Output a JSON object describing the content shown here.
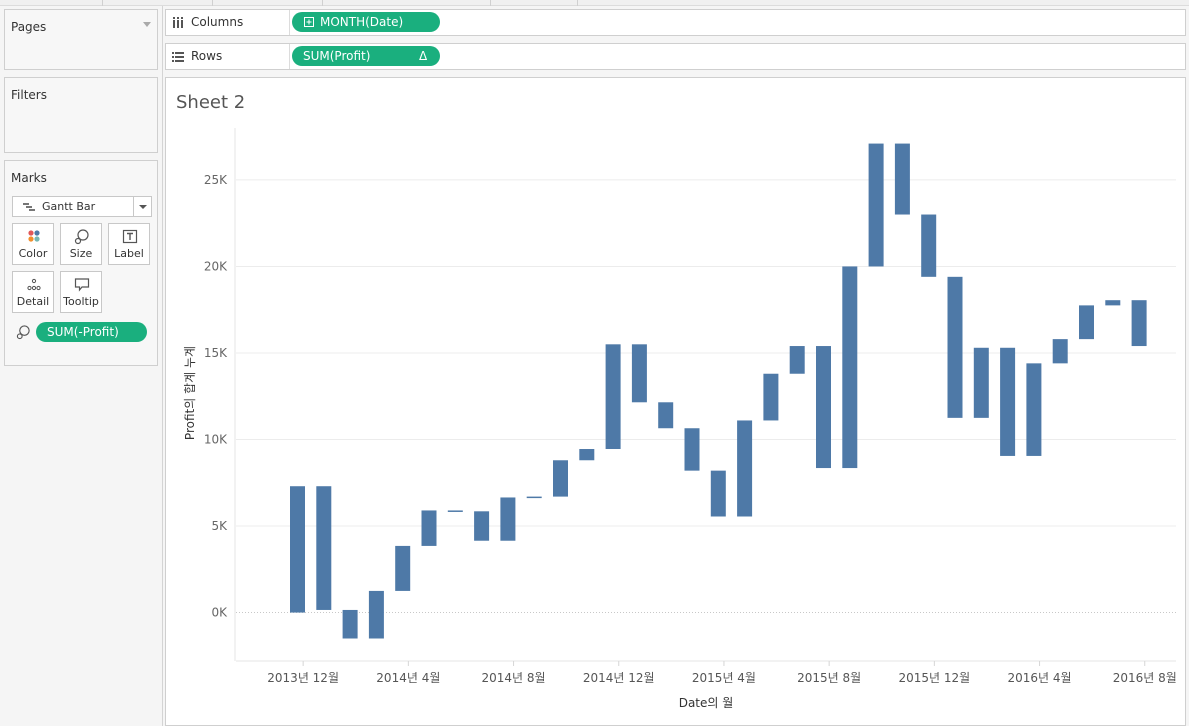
{
  "shelves": {
    "columns_label": "Columns",
    "rows_label": "Rows",
    "columns_pill": "MONTH(Date)",
    "rows_pill": "SUM(Profit)",
    "rows_pill_badge": "Δ"
  },
  "cards": {
    "pages_title": "Pages",
    "filters_title": "Filters",
    "marks_title": "Marks"
  },
  "marks": {
    "mark_type": "Gantt Bar",
    "buttons": {
      "color": "Color",
      "size": "Size",
      "label": "Label",
      "detail": "Detail",
      "tooltip": "Tooltip"
    },
    "size_pill": "SUM(-Profit)"
  },
  "sheet": {
    "title": "Sheet 2"
  },
  "colors": {
    "bar": "#4e79a7",
    "pill": "#1aaf7e",
    "grid": "#ececec"
  },
  "chart_data": {
    "type": "gantt-waterfall",
    "xlabel": "Date의 월",
    "ylabel": "Profit의 합계 누계",
    "ylim": [
      -2800,
      28000
    ],
    "yticks": [
      0,
      5000,
      10000,
      15000,
      20000,
      25000
    ],
    "ytick_labels": [
      "0K",
      "5K",
      "10K",
      "15K",
      "20K",
      "25K"
    ],
    "xtick_labels": [
      "2013년 12월",
      "2014년 4월",
      "2014년 8월",
      "2014년 12월",
      "2015년 4월",
      "2015년 8월",
      "2015년 12월",
      "2016년 4월",
      "2016년 8월"
    ],
    "xtick_positions": [
      0.5,
      4.5,
      8.5,
      12.5,
      16.5,
      20.5,
      24.5,
      28.5,
      32.5
    ],
    "bars": [
      {
        "start": 0,
        "end": 7300
      },
      {
        "start": 7300,
        "end": 150
      },
      {
        "start": 150,
        "end": -1500
      },
      {
        "start": -1500,
        "end": 1250
      },
      {
        "start": 1250,
        "end": 3850
      },
      {
        "start": 3850,
        "end": 5900
      },
      {
        "start": 5900,
        "end": 5850
      },
      {
        "start": 5850,
        "end": 4150
      },
      {
        "start": 4150,
        "end": 6650
      },
      {
        "start": 6650,
        "end": 6700
      },
      {
        "start": 6700,
        "end": 8800
      },
      {
        "start": 8800,
        "end": 9450
      },
      {
        "start": 9450,
        "end": 15500
      },
      {
        "start": 15500,
        "end": 12150
      },
      {
        "start": 12150,
        "end": 10650
      },
      {
        "start": 10650,
        "end": 8200
      },
      {
        "start": 8200,
        "end": 5550
      },
      {
        "start": 5550,
        "end": 11100
      },
      {
        "start": 11100,
        "end": 13800
      },
      {
        "start": 13800,
        "end": 15400
      },
      {
        "start": 15400,
        "end": 8350
      },
      {
        "start": 8350,
        "end": 20000
      },
      {
        "start": 20000,
        "end": 27100
      },
      {
        "start": 27100,
        "end": 23000
      },
      {
        "start": 23000,
        "end": 19400
      },
      {
        "start": 19400,
        "end": 11250
      },
      {
        "start": 11250,
        "end": 15300
      },
      {
        "start": 15300,
        "end": 9050
      },
      {
        "start": 9050,
        "end": 14400
      },
      {
        "start": 14400,
        "end": 15800
      },
      {
        "start": 15800,
        "end": 17750
      },
      {
        "start": 17750,
        "end": 18050
      },
      {
        "start": 18050,
        "end": 15400
      }
    ]
  }
}
